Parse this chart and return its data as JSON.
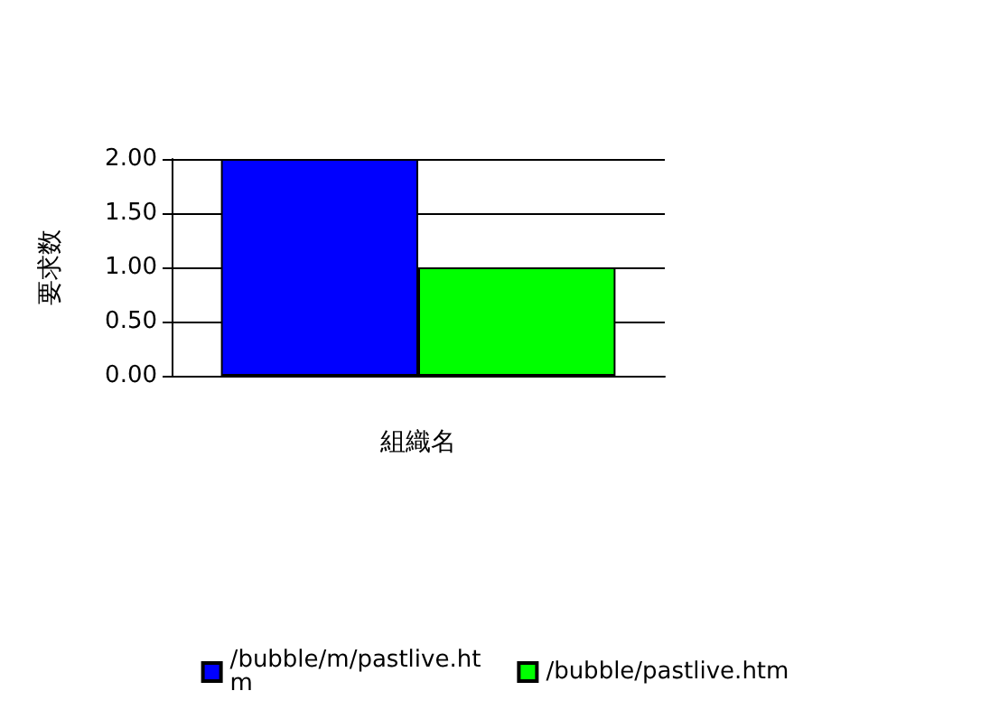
{
  "chart_data": {
    "type": "bar",
    "xlabel": "組織名",
    "ylabel": "要求数",
    "categories": [
      null
    ],
    "series": [
      {
        "name": "/bubble/m/pastlive.htm",
        "color": "#0000ff",
        "values": [
          2
        ]
      },
      {
        "name": "/bubble/pastlive.htm",
        "color": "#00ff00",
        "values": [
          1
        ]
      }
    ],
    "ylim": [
      0,
      2
    ],
    "yticks": [
      {
        "value": 0,
        "label": "0.00"
      },
      {
        "value": 0.5,
        "label": "0.50"
      },
      {
        "value": 1,
        "label": "1.00"
      },
      {
        "value": 1.5,
        "label": "1.50"
      },
      {
        "value": 2,
        "label": "2.00"
      }
    ],
    "grid": "y",
    "legend": "bottom"
  }
}
